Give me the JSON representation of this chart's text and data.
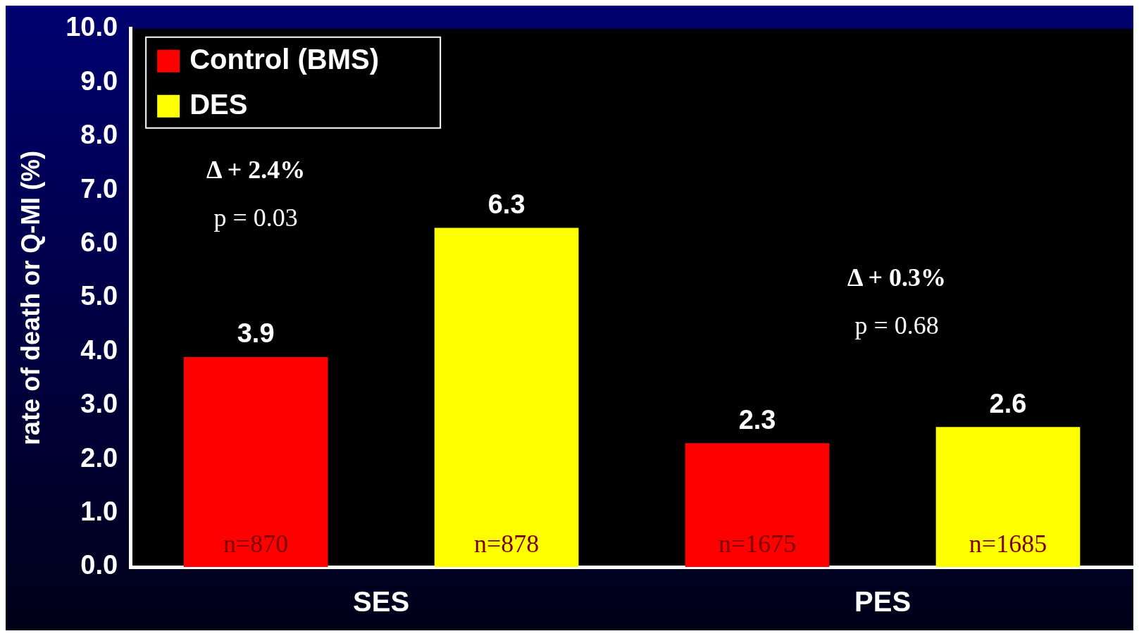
{
  "chart_data": {
    "type": "bar",
    "ylabel": "rate of death or Q-MI (%)",
    "categories": [
      "SES",
      "PES"
    ],
    "series": [
      {
        "name": "Control (BMS)",
        "color": "#ff0000",
        "values": [
          3.9,
          2.3
        ]
      },
      {
        "name": "DES",
        "color": "#ffff00",
        "values": [
          6.3,
          2.6
        ]
      }
    ],
    "ylim": [
      0,
      10
    ],
    "yticks": [
      {
        "value": 0,
        "label": "0.0"
      },
      {
        "value": 1,
        "label": "1.0"
      },
      {
        "value": 2,
        "label": "2.0"
      },
      {
        "value": 3,
        "label": "3.0"
      },
      {
        "value": 4,
        "label": "4.0"
      },
      {
        "value": 5,
        "label": "5.0"
      },
      {
        "value": 6,
        "label": "6.0"
      },
      {
        "value": 7,
        "label": "7.0"
      },
      {
        "value": 8,
        "label": "8.0"
      },
      {
        "value": 9,
        "label": "9.0"
      },
      {
        "value": 10,
        "label": "10.0"
      }
    ],
    "data_labels": true,
    "legend": "top left",
    "grid": false,
    "annotations": [
      "n=870",
      "n=1675",
      "n=878",
      "n=1685",
      "Δ + 2.4%",
      "p = 0.03",
      "Δ + 0.3%",
      "p = 0.68"
    ]
  }
}
